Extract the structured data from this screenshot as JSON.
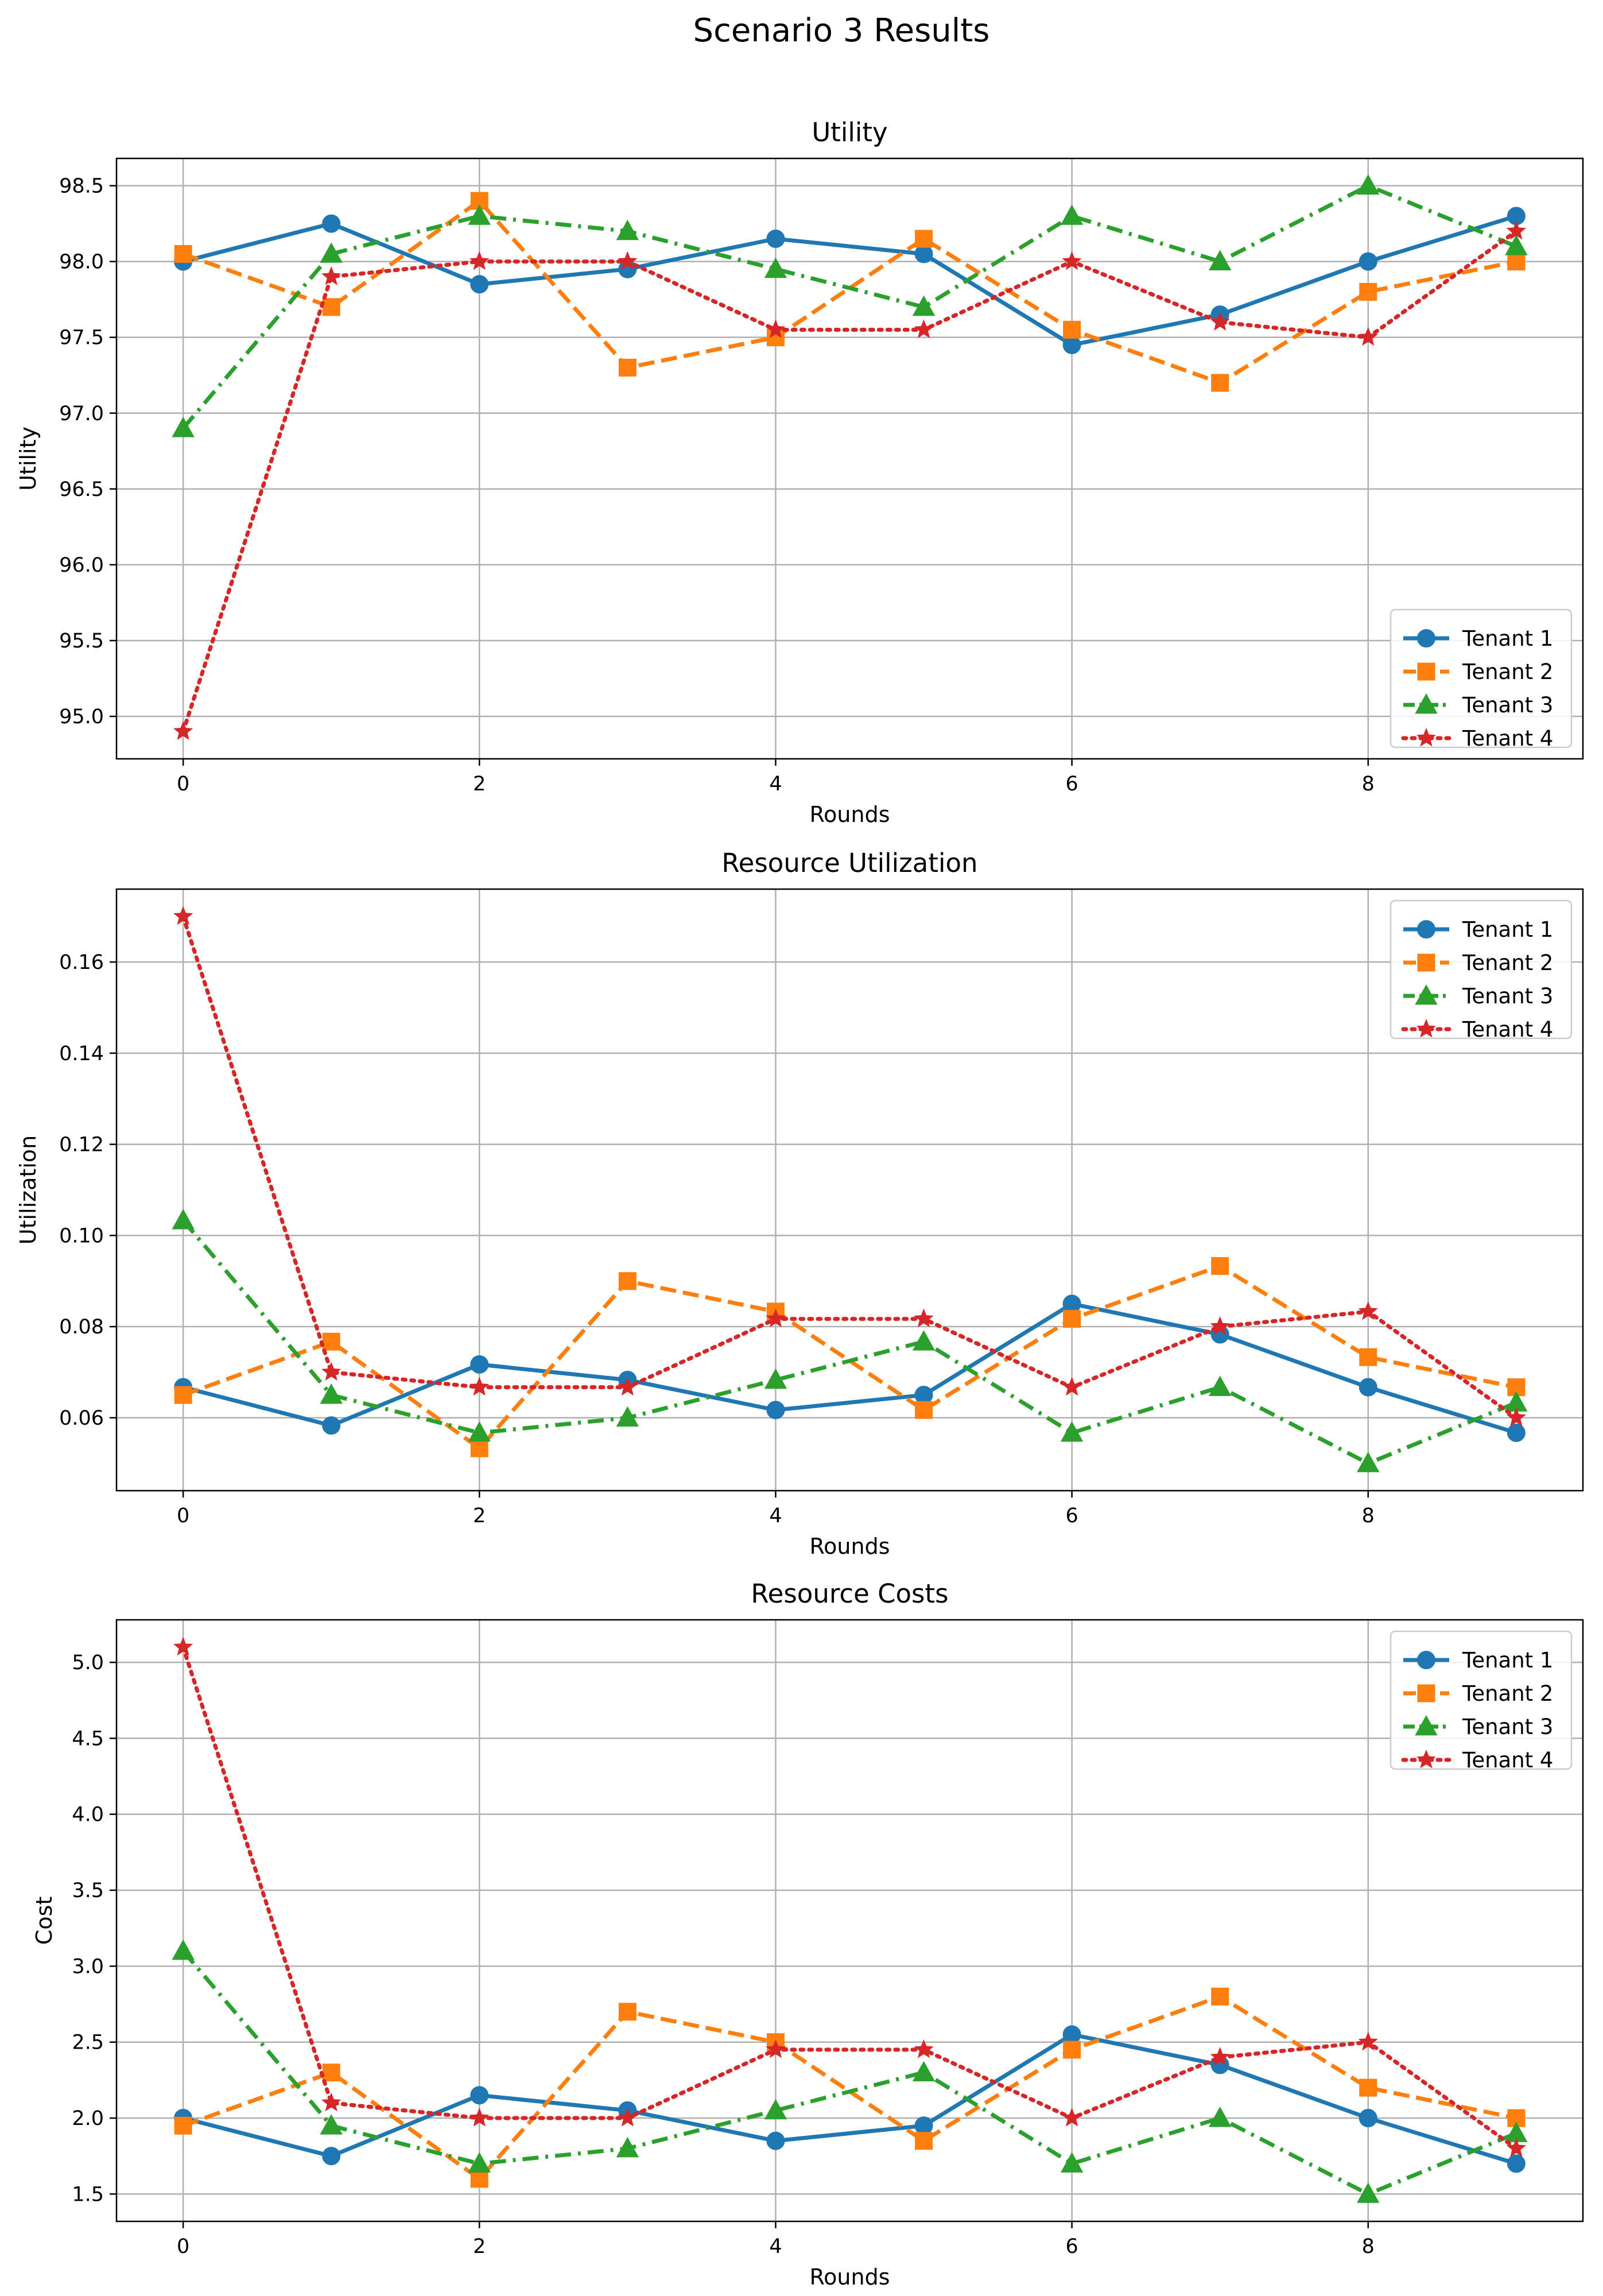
{
  "title": "Scenario 3 Results",
  "colors": {
    "Tenant 1": "#1f77b4",
    "Tenant 2": "#ff7f0e",
    "Tenant 3": "#2ca02c",
    "Tenant 4": "#d62728"
  },
  "chart_data": [
    {
      "type": "line",
      "title": "Utility",
      "xlabel": "Rounds",
      "ylabel": "Utility",
      "x": [
        0,
        1,
        2,
        3,
        4,
        5,
        6,
        7,
        8,
        9
      ],
      "xlim": [
        -0.45,
        9.45
      ],
      "xticks": [
        0,
        2,
        4,
        6,
        8
      ],
      "xtick_labels": [
        "0",
        "2",
        "4",
        "6",
        "8"
      ],
      "ylim": [
        94.72,
        98.68
      ],
      "yticks": [
        95.0,
        95.5,
        96.0,
        96.5,
        97.0,
        97.5,
        98.0,
        98.5
      ],
      "ytick_labels": [
        "95.0",
        "95.5",
        "96.0",
        "96.5",
        "97.0",
        "97.5",
        "98.0",
        "98.5"
      ],
      "grid": true,
      "legend_position": "lower-right",
      "series": [
        {
          "name": "Tenant 1",
          "marker": "circle",
          "linestyle": "solid",
          "values": [
            98.0,
            98.25,
            97.85,
            97.95,
            98.15,
            98.05,
            97.45,
            97.65,
            98.0,
            98.3
          ]
        },
        {
          "name": "Tenant 2",
          "marker": "square",
          "linestyle": "dashed",
          "values": [
            98.05,
            97.7,
            98.4,
            97.3,
            97.5,
            98.15,
            97.55,
            97.2,
            97.8,
            98.0
          ]
        },
        {
          "name": "Tenant 3",
          "marker": "triangle",
          "linestyle": "dashdot",
          "values": [
            96.9,
            98.05,
            98.3,
            98.2,
            97.95,
            97.7,
            98.3,
            98.0,
            98.5,
            98.1
          ]
        },
        {
          "name": "Tenant 4",
          "marker": "star",
          "linestyle": "dotted",
          "values": [
            94.9,
            97.9,
            98.0,
            98.0,
            97.55,
            97.55,
            98.0,
            97.6,
            97.5,
            98.2
          ]
        }
      ]
    },
    {
      "type": "line",
      "title": "Resource Utilization",
      "xlabel": "Rounds",
      "ylabel": "Utilization",
      "x": [
        0,
        1,
        2,
        3,
        4,
        5,
        6,
        7,
        8,
        9
      ],
      "xlim": [
        -0.45,
        9.45
      ],
      "xticks": [
        0,
        2,
        4,
        6,
        8
      ],
      "xtick_labels": [
        "0",
        "2",
        "4",
        "6",
        "8"
      ],
      "ylim": [
        0.044,
        0.176
      ],
      "yticks": [
        0.06,
        0.08,
        0.1,
        0.12,
        0.14,
        0.16
      ],
      "ytick_labels": [
        "0.06",
        "0.08",
        "0.10",
        "0.12",
        "0.14",
        "0.16"
      ],
      "grid": true,
      "legend_position": "upper-right",
      "series": [
        {
          "name": "Tenant 1",
          "marker": "circle",
          "linestyle": "solid",
          "values": [
            0.0667,
            0.0583,
            0.0717,
            0.0683,
            0.0617,
            0.065,
            0.085,
            0.0783,
            0.0667,
            0.0567
          ]
        },
        {
          "name": "Tenant 2",
          "marker": "square",
          "linestyle": "dashed",
          "values": [
            0.065,
            0.0767,
            0.0533,
            0.09,
            0.0833,
            0.0617,
            0.0817,
            0.0933,
            0.0733,
            0.0667
          ]
        },
        {
          "name": "Tenant 3",
          "marker": "triangle",
          "linestyle": "dashdot",
          "values": [
            0.1033,
            0.065,
            0.0567,
            0.06,
            0.0683,
            0.0767,
            0.0567,
            0.0667,
            0.05,
            0.0633
          ]
        },
        {
          "name": "Tenant 4",
          "marker": "star",
          "linestyle": "dotted",
          "values": [
            0.17,
            0.07,
            0.0667,
            0.0667,
            0.0817,
            0.0817,
            0.0667,
            0.08,
            0.0833,
            0.06
          ]
        }
      ]
    },
    {
      "type": "line",
      "title": "Resource Costs",
      "xlabel": "Rounds",
      "ylabel": "Cost",
      "x": [
        0,
        1,
        2,
        3,
        4,
        5,
        6,
        7,
        8,
        9
      ],
      "xlim": [
        -0.45,
        9.45
      ],
      "xticks": [
        0,
        2,
        4,
        6,
        8
      ],
      "xtick_labels": [
        "0",
        "2",
        "4",
        "6",
        "8"
      ],
      "ylim": [
        1.32,
        5.28
      ],
      "yticks": [
        1.5,
        2.0,
        2.5,
        3.0,
        3.5,
        4.0,
        4.5,
        5.0
      ],
      "ytick_labels": [
        "1.5",
        "2.0",
        "2.5",
        "3.0",
        "3.5",
        "4.0",
        "4.5",
        "5.0"
      ],
      "grid": true,
      "legend_position": "upper-right",
      "series": [
        {
          "name": "Tenant 1",
          "marker": "circle",
          "linestyle": "solid",
          "values": [
            2.0,
            1.75,
            2.15,
            2.05,
            1.85,
            1.95,
            2.55,
            2.35,
            2.0,
            1.7
          ]
        },
        {
          "name": "Tenant 2",
          "marker": "square",
          "linestyle": "dashed",
          "values": [
            1.95,
            2.3,
            1.6,
            2.7,
            2.5,
            1.85,
            2.45,
            2.8,
            2.2,
            2.0
          ]
        },
        {
          "name": "Tenant 3",
          "marker": "triangle",
          "linestyle": "dashdot",
          "values": [
            3.1,
            1.95,
            1.7,
            1.8,
            2.05,
            2.3,
            1.7,
            2.0,
            1.5,
            1.9
          ]
        },
        {
          "name": "Tenant 4",
          "marker": "star",
          "linestyle": "dotted",
          "values": [
            5.1,
            2.1,
            2.0,
            2.0,
            2.45,
            2.45,
            2.0,
            2.4,
            2.5,
            1.8
          ]
        }
      ]
    }
  ]
}
